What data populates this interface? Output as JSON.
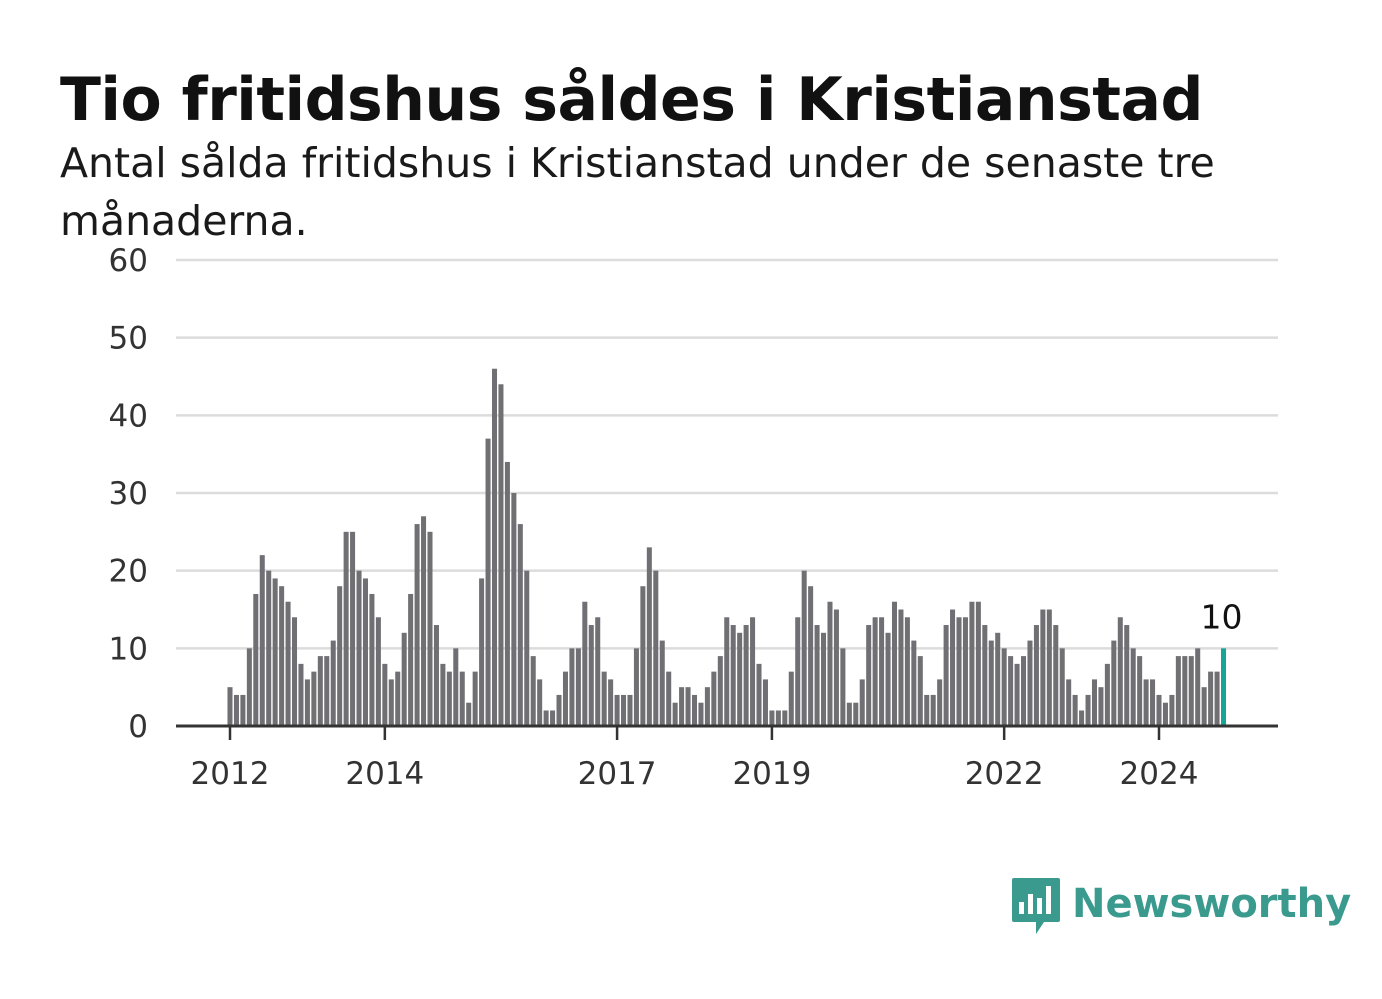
{
  "title": "Tio fritidshus såldes i Kristianstad",
  "subtitle": "Antal sålda fritidshus i Kristianstad under de senaste tre månaderna.",
  "brand": {
    "name": "Newsworthy",
    "color": "#3a9a8e",
    "logo_icon": "bar-chart-speech-bubble-icon"
  },
  "chart_data": {
    "type": "bar",
    "x_start": "2012-01",
    "frequency": "monthly",
    "values": [
      5,
      4,
      4,
      10,
      17,
      22,
      20,
      19,
      18,
      16,
      14,
      8,
      6,
      7,
      9,
      9,
      11,
      18,
      25,
      25,
      20,
      19,
      17,
      14,
      8,
      6,
      7,
      12,
      17,
      26,
      27,
      25,
      13,
      8,
      7,
      10,
      7,
      3,
      7,
      19,
      37,
      46,
      44,
      34,
      30,
      26,
      20,
      9,
      6,
      2,
      2,
      4,
      7,
      10,
      10,
      16,
      13,
      14,
      7,
      6,
      4,
      4,
      4,
      10,
      18,
      23,
      20,
      11,
      7,
      3,
      5,
      5,
      4,
      3,
      5,
      7,
      9,
      14,
      13,
      12,
      13,
      14,
      8,
      6,
      2,
      2,
      2,
      7,
      14,
      20,
      18,
      13,
      12,
      16,
      15,
      10,
      3,
      3,
      6,
      13,
      14,
      14,
      12,
      16,
      15,
      14,
      11,
      9,
      4,
      4,
      6,
      13,
      15,
      14,
      14,
      16,
      16,
      13,
      11,
      12,
      10,
      9,
      8,
      9,
      11,
      13,
      15,
      15,
      13,
      10,
      6,
      4,
      2,
      4,
      6,
      5,
      8,
      11,
      14,
      13,
      10,
      9,
      6,
      6,
      4,
      3,
      4,
      9,
      9,
      9,
      10,
      5,
      7,
      7,
      10
    ],
    "x_ticks": [
      "2012",
      "2014",
      "2017",
      "2019",
      "2022",
      "2024"
    ],
    "y_ticks": [
      0,
      10,
      20,
      30,
      40,
      50,
      60
    ],
    "ylim": [
      0,
      60
    ],
    "grid": true,
    "bar_color": "#707074",
    "highlight_color": "#17a596",
    "highlight_label": "10"
  }
}
